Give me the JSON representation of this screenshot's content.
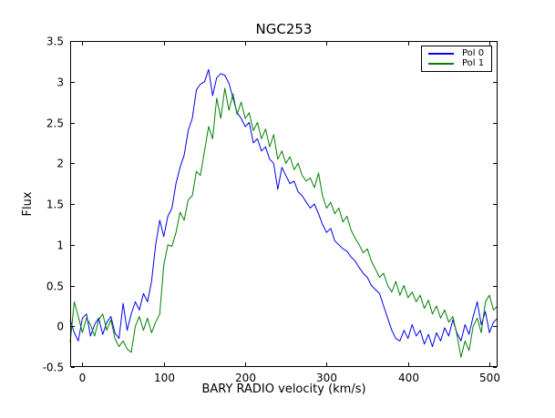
{
  "window": {
    "background": "#ffffff",
    "plot_background": "#ffffff",
    "axis_color": "#000000"
  },
  "chart_data": {
    "type": "line",
    "title": "NGC253",
    "xlabel": "BARY RADIO velocity (km/s)",
    "ylabel": "Flux",
    "xlim": [
      -15,
      510
    ],
    "ylim": [
      -0.5,
      3.5
    ],
    "x_ticks": [
      0,
      100,
      200,
      300,
      400,
      500
    ],
    "x_tick_labels": [
      "0",
      "100",
      "200",
      "300",
      "400",
      "500"
    ],
    "y_ticks": [
      -0.5,
      0,
      0.5,
      1,
      1.5,
      2,
      2.5,
      3,
      3.5
    ],
    "y_tick_labels": [
      "-0.5",
      "0",
      "0.5",
      "1",
      "1.5",
      "2",
      "2.5",
      "3",
      "3.5"
    ],
    "grid": false,
    "legend_position": "upper right",
    "x_start": -15,
    "x_step": 5,
    "series": [
      {
        "name": "Pol 0",
        "color": "#0000ee",
        "values": [
          0.08,
          -0.08,
          -0.18,
          0.1,
          0.15,
          -0.12,
          0.02,
          0.1,
          -0.1,
          0.05,
          0.12,
          -0.08,
          -0.15,
          0.28,
          -0.05,
          0.15,
          0.3,
          0.2,
          0.4,
          0.3,
          0.55,
          1.0,
          1.3,
          1.1,
          1.35,
          1.45,
          1.75,
          1.95,
          2.1,
          2.4,
          2.55,
          2.9,
          2.97,
          3.0,
          3.15,
          2.83,
          3.05,
          3.1,
          3.08,
          2.98,
          2.8,
          2.62,
          2.55,
          2.45,
          2.5,
          2.25,
          2.3,
          2.15,
          2.2,
          2.05,
          2.0,
          1.68,
          1.95,
          1.85,
          1.75,
          1.78,
          1.65,
          1.6,
          1.52,
          1.45,
          1.5,
          1.38,
          1.25,
          1.15,
          1.2,
          1.05,
          1.0,
          0.95,
          0.92,
          0.85,
          0.8,
          0.72,
          0.65,
          0.6,
          0.5,
          0.45,
          0.4,
          0.25,
          0.1,
          -0.05,
          -0.15,
          -0.18,
          -0.05,
          -0.15,
          0.02,
          -0.12,
          -0.05,
          -0.22,
          -0.1,
          -0.25,
          -0.08,
          -0.18,
          -0.02,
          -0.12,
          0.08,
          -0.08,
          -0.18,
          0.02,
          -0.1,
          0.12,
          0.3,
          0.02,
          0.18,
          -0.08,
          0.05,
          0.1
        ]
      },
      {
        "name": "Pol 1",
        "color": "#008000",
        "values": [
          -0.2,
          0.3,
          0.12,
          -0.08,
          0.1,
          0.02,
          -0.12,
          0.08,
          0.15,
          -0.05,
          0.08,
          -0.15,
          -0.25,
          -0.18,
          -0.28,
          -0.32,
          0.0,
          0.12,
          -0.05,
          0.1,
          -0.08,
          0.05,
          0.15,
          0.75,
          1.0,
          0.98,
          1.15,
          1.4,
          1.3,
          1.55,
          1.6,
          1.9,
          1.85,
          2.15,
          2.45,
          2.3,
          2.8,
          2.55,
          2.92,
          2.65,
          2.85,
          2.6,
          2.75,
          2.55,
          2.62,
          2.4,
          2.5,
          2.3,
          2.42,
          2.2,
          2.35,
          2.05,
          2.15,
          2.0,
          2.08,
          1.92,
          2.0,
          1.85,
          1.78,
          1.82,
          1.7,
          1.88,
          1.6,
          1.45,
          1.52,
          1.38,
          1.45,
          1.28,
          1.35,
          1.18,
          1.08,
          1.0,
          0.9,
          0.95,
          0.8,
          0.7,
          0.6,
          0.65,
          0.5,
          0.42,
          0.55,
          0.38,
          0.5,
          0.35,
          0.42,
          0.3,
          0.38,
          0.22,
          0.32,
          0.15,
          0.25,
          0.1,
          0.2,
          0.05,
          0.12,
          -0.1,
          -0.38,
          -0.18,
          -0.3,
          0.0,
          0.1,
          -0.08,
          0.3,
          0.38,
          0.2,
          0.25
        ]
      }
    ]
  }
}
